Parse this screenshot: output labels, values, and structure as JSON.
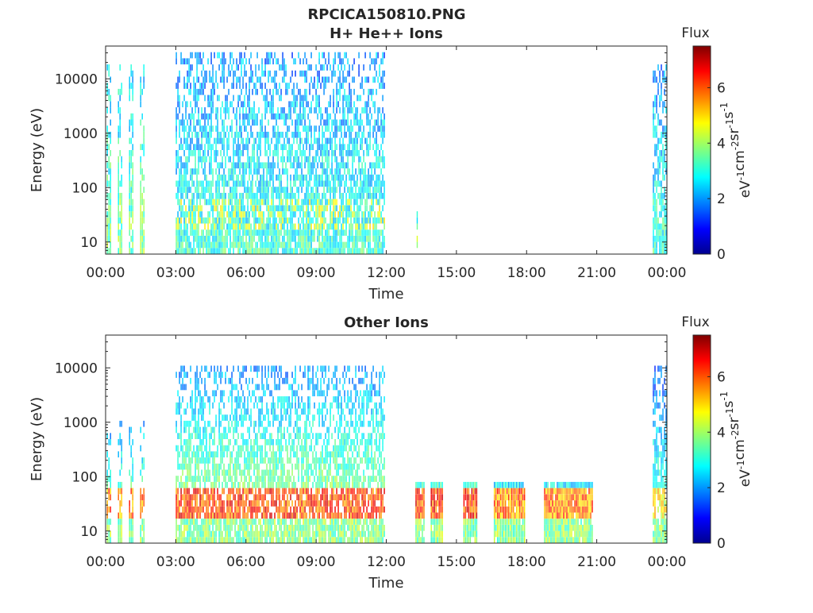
{
  "figure": {
    "title": "RPCICA150810.PNG"
  },
  "chart_data": [
    {
      "type": "heatmap",
      "title": "H+ He++ Ions",
      "xlabel": "Time",
      "ylabel": "Energy (eV)",
      "yscale": "log",
      "xlim": [
        "00:00",
        "24:00"
      ],
      "ylim": [
        6,
        40000
      ],
      "x_ticks": [
        "00:00",
        "03:00",
        "06:00",
        "09:00",
        "12:00",
        "15:00",
        "18:00",
        "21:00",
        "00:00"
      ],
      "y_ticks": [
        "10",
        "100",
        "1000",
        "10000"
      ],
      "colorbar": {
        "label_top": "Flux",
        "label_side": "eV-1cm-2sr-1s-1",
        "range": [
          0,
          7.5
        ],
        "ticks": [
          "0",
          "2",
          "4",
          "6"
        ],
        "colormap": "jet"
      },
      "data_segments": [
        {
          "start_hour": 0.05,
          "end_hour": 1.85,
          "pattern": "bursts",
          "max_energy_eV": 20000,
          "typical_flux": 2.5,
          "peak_flux": 4.5
        },
        {
          "start_hour": 3.0,
          "end_hour": 11.95,
          "pattern": "continuous",
          "max_energy_eV": 30000,
          "typical_flux": 2.0,
          "peak_flux": 5.0
        },
        {
          "start_hour": 13.3,
          "end_hour": 13.35,
          "pattern": "spike",
          "max_energy_eV": 80,
          "typical_flux": 3.0,
          "peak_flux": 3.0
        },
        {
          "start_hour": 23.4,
          "end_hour": 24.0,
          "pattern": "continuous",
          "max_energy_eV": 20000,
          "typical_flux": 2.0,
          "peak_flux": 3.5
        }
      ]
    },
    {
      "type": "heatmap",
      "title": "Other Ions",
      "xlabel": "Time",
      "ylabel": "Energy (eV)",
      "yscale": "log",
      "xlim": [
        "00:00",
        "24:00"
      ],
      "ylim": [
        6,
        40000
      ],
      "x_ticks": [
        "00:00",
        "03:00",
        "06:00",
        "09:00",
        "12:00",
        "15:00",
        "18:00",
        "21:00",
        "00:00"
      ],
      "y_ticks": [
        "10",
        "100",
        "1000",
        "10000"
      ],
      "colorbar": {
        "label_top": "Flux",
        "label_side": "eV-1cm-2sr-1s-1",
        "range": [
          0,
          7.5
        ],
        "ticks": [
          "0",
          "2",
          "4",
          "6"
        ],
        "colormap": "jet"
      },
      "data_segments": [
        {
          "start_hour": 0.05,
          "end_hour": 1.85,
          "pattern": "bursts",
          "max_energy_eV": 1000,
          "typical_flux": 4.5,
          "peak_flux": 6.5
        },
        {
          "start_hour": 3.0,
          "end_hour": 11.95,
          "pattern": "continuous",
          "max_energy_eV": 10000,
          "typical_flux": 4.5,
          "peak_flux": 7.0
        },
        {
          "start_hour": 13.25,
          "end_hour": 13.6,
          "pattern": "block",
          "max_energy_eV": 80,
          "typical_flux": 5.5,
          "peak_flux": 7.0
        },
        {
          "start_hour": 13.9,
          "end_hour": 14.4,
          "pattern": "block",
          "max_energy_eV": 80,
          "typical_flux": 5.5,
          "peak_flux": 7.0
        },
        {
          "start_hour": 15.3,
          "end_hour": 15.85,
          "pattern": "block",
          "max_energy_eV": 80,
          "typical_flux": 5.5,
          "peak_flux": 7.0
        },
        {
          "start_hour": 16.6,
          "end_hour": 17.95,
          "pattern": "block",
          "max_energy_eV": 80,
          "typical_flux": 5.0,
          "peak_flux": 6.5
        },
        {
          "start_hour": 18.75,
          "end_hour": 20.85,
          "pattern": "block",
          "max_energy_eV": 80,
          "typical_flux": 5.0,
          "peak_flux": 6.5
        },
        {
          "start_hour": 23.4,
          "end_hour": 24.0,
          "pattern": "continuous",
          "max_energy_eV": 10000,
          "typical_flux": 4.0,
          "peak_flux": 5.5
        }
      ]
    }
  ]
}
